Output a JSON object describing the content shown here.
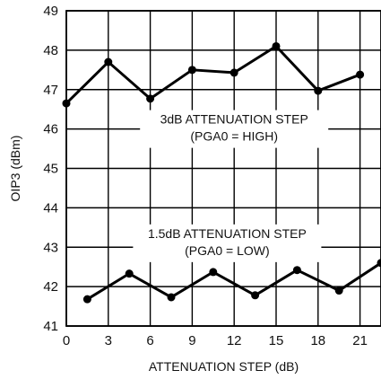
{
  "chart_data": {
    "type": "line",
    "xlabel": "ATTENUATION STEP (dB)",
    "ylabel": "OIP3 (dBm)",
    "xlim": [
      0,
      22.5
    ],
    "ylim": [
      41,
      49
    ],
    "x_ticks": [
      "0",
      "3",
      "6",
      "9",
      "12",
      "15",
      "18",
      "21"
    ],
    "y_ticks": [
      "41",
      "42",
      "43",
      "44",
      "45",
      "46",
      "47",
      "48",
      "49"
    ],
    "grid": true,
    "series": [
      {
        "x": [
          0,
          3,
          6,
          9,
          12,
          15,
          18,
          21
        ],
        "y": [
          46.65,
          47.7,
          46.77,
          47.5,
          47.43,
          48.1,
          46.97,
          47.38
        ]
      },
      {
        "x": [
          1.5,
          4.5,
          7.5,
          10.5,
          13.5,
          16.5,
          19.5,
          22.5
        ],
        "y": [
          41.68,
          42.33,
          41.73,
          42.37,
          41.78,
          42.42,
          41.9,
          42.6
        ]
      }
    ],
    "annotations": [
      {
        "lines": [
          "3dB ATTENUATION STEP",
          "(PGA0 = HIGH)"
        ],
        "anchor_x": 12,
        "anchor_y": 46.0
      },
      {
        "lines": [
          "1.5dB ATTENUATION STEP",
          "(PGA0 = LOW)"
        ],
        "anchor_x": 11.5,
        "anchor_y": 43.1
      }
    ]
  }
}
